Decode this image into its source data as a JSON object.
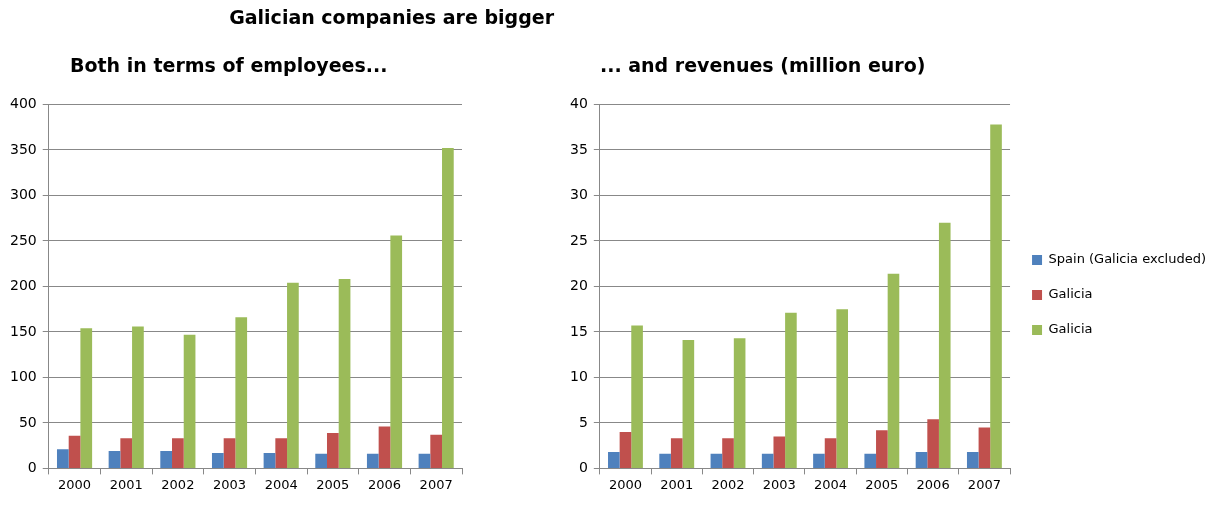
{
  "chart_data": [
    {
      "type": "bar",
      "title": "Galician companies are bigger",
      "subtitle": "Both in terms of employees...",
      "categories": [
        "2000",
        "2001",
        "2002",
        "2003",
        "2004",
        "2005",
        "2006",
        "2007"
      ],
      "series": [
        {
          "color": "#4f81bd",
          "values": [
            21,
            19,
            19,
            17,
            17,
            16,
            16,
            16
          ]
        },
        {
          "color": "#c0504d",
          "values": [
            36,
            33,
            33,
            33,
            33,
            39,
            46,
            37
          ]
        },
        {
          "color": "#9bbb59",
          "values": [
            154,
            156,
            147,
            166,
            204,
            208,
            256,
            352
          ]
        }
      ],
      "ylim": [
        0,
        400
      ],
      "yticks": [
        0,
        50,
        100,
        150,
        200,
        250,
        300,
        350,
        400
      ],
      "grid": "y",
      "legend": false
    },
    {
      "type": "bar",
      "title": "... and revenues (million euro)",
      "categories": [
        "2000",
        "2001",
        "2002",
        "2003",
        "2004",
        "2005",
        "2006",
        "2007"
      ],
      "series": [
        {
          "name": "Spain (Galicia excluded)",
          "color": "#4f81bd",
          "values": [
            1.8,
            1.6,
            1.6,
            1.6,
            1.6,
            1.6,
            1.8,
            1.8
          ]
        },
        {
          "name": "Galicia",
          "color": "#c0504d",
          "values": [
            4.0,
            3.3,
            3.3,
            3.5,
            3.3,
            4.2,
            5.4,
            4.5
          ]
        },
        {
          "name": "Galicia",
          "color": "#9bbb59",
          "values": [
            15.7,
            14.1,
            14.3,
            17.1,
            17.5,
            21.4,
            27.0,
            37.8
          ]
        }
      ],
      "ylim": [
        0,
        40
      ],
      "yticks": [
        0,
        5,
        10,
        15,
        20,
        25,
        30,
        35,
        40
      ],
      "grid": "y",
      "legend": "right"
    }
  ]
}
